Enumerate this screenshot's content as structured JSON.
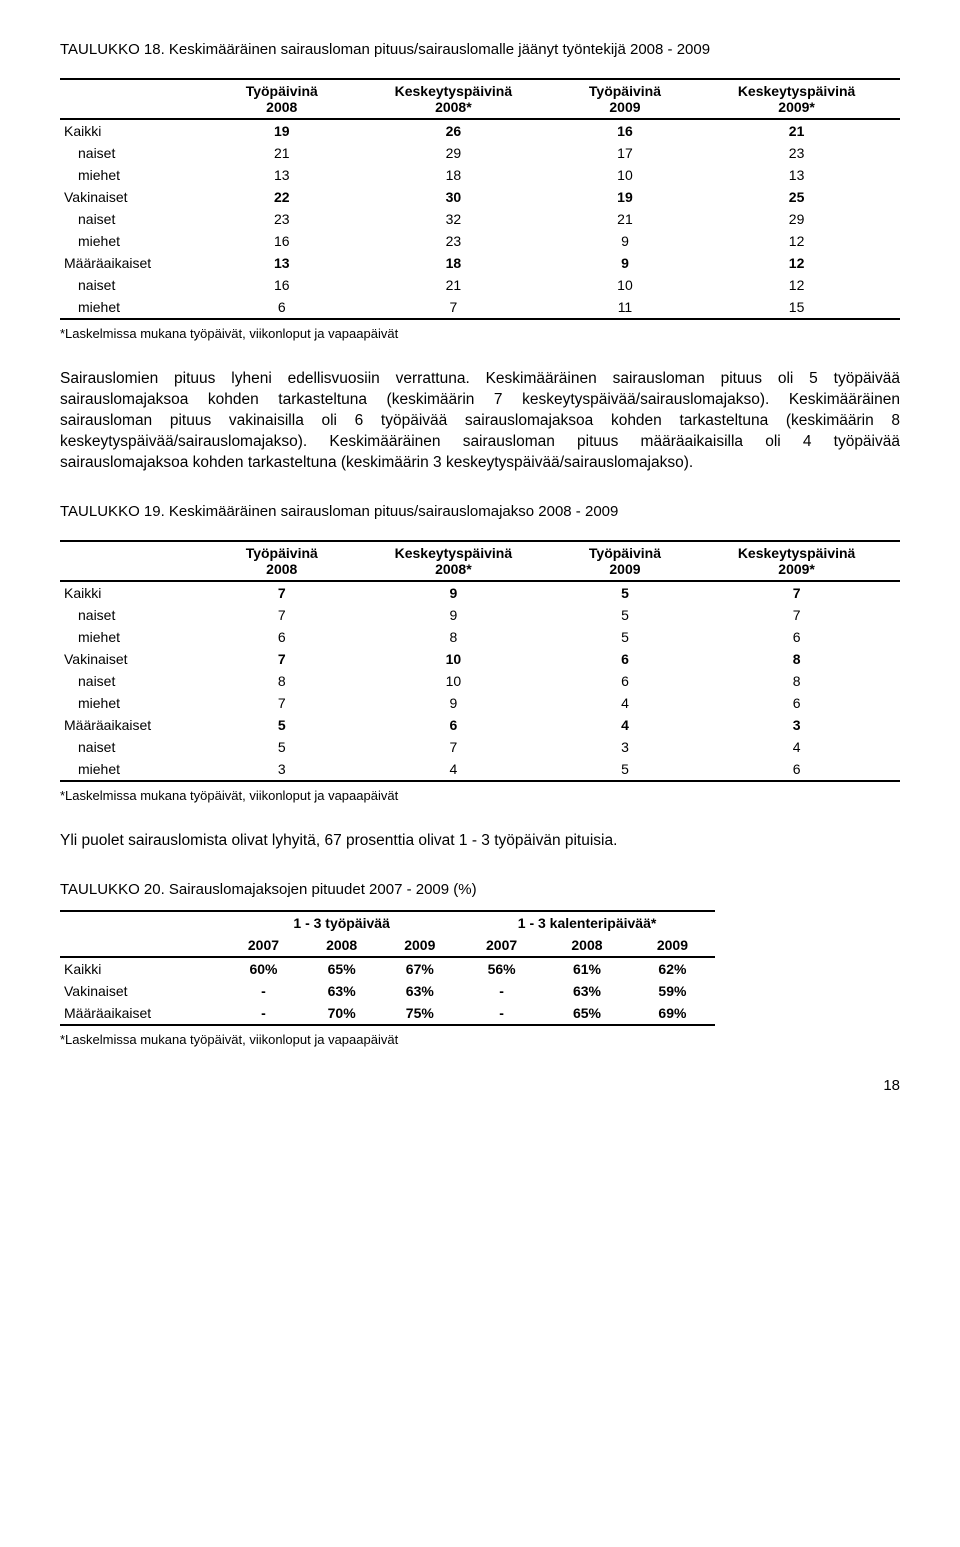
{
  "t18": {
    "caption": "TAULUKKO 18. Keskimääräinen sairausloman pituus/sairauslomalle jäänyt työntekijä 2008 - 2009",
    "cols": [
      "",
      "Työpäivinä\n2008",
      "Keskeytyspäivinä\n2008*",
      "Työpäivinä\n2009",
      "Keskeytyspäivinä\n2009*"
    ],
    "groups": [
      {
        "label": "Kaikki",
        "vals": [
          19,
          26,
          16,
          21
        ],
        "rows": [
          {
            "label": "naiset",
            "vals": [
              21,
              29,
              17,
              23
            ]
          },
          {
            "label": "miehet",
            "vals": [
              13,
              18,
              10,
              13
            ]
          }
        ]
      },
      {
        "label": "Vakinaiset",
        "vals": [
          22,
          30,
          19,
          25
        ],
        "rows": [
          {
            "label": "naiset",
            "vals": [
              23,
              32,
              21,
              29
            ]
          },
          {
            "label": "miehet",
            "vals": [
              16,
              23,
              9,
              12
            ]
          }
        ]
      },
      {
        "label": "Määräaikaiset",
        "vals": [
          13,
          18,
          9,
          12
        ],
        "rows": [
          {
            "label": "naiset",
            "vals": [
              16,
              21,
              10,
              12
            ]
          },
          {
            "label": "miehet",
            "vals": [
              6,
              7,
              11,
              15
            ]
          }
        ]
      }
    ],
    "footnote": "*Laskelmissa mukana työpäivät, viikonloput ja vapaapäivät"
  },
  "para1": "Sairauslomien pituus lyheni edellisvuosiin verrattuna. Keskimääräinen sairausloman pituus oli 5 työpäivää sairauslomajaksoa kohden tarkasteltuna (keskimäärin 7 keskeytyspäivää/sairauslomajakso). Keskimääräinen sairausloman pituus vakinaisilla oli 6 työpäivää sairauslomajaksoa kohden tarkasteltuna (keskimäärin 8 keskeytyspäivää/sairauslomajakso). Keskimääräinen sairausloman pituus määräaikaisilla oli 4 työpäivää sairauslomajaksoa kohden tarkasteltuna (keskimäärin 3 keskeytyspäivää/sairauslomajakso).",
  "t19": {
    "caption": "TAULUKKO 19. Keskimääräinen sairausloman pituus/sairauslomajakso 2008 - 2009",
    "cols": [
      "",
      "Työpäivinä\n2008",
      "Keskeytyspäivinä\n2008*",
      "Työpäivinä\n2009",
      "Keskeytyspäivinä\n2009*"
    ],
    "groups": [
      {
        "label": "Kaikki",
        "vals": [
          7,
          9,
          5,
          7
        ],
        "rows": [
          {
            "label": "naiset",
            "vals": [
              7,
              9,
              5,
              7
            ]
          },
          {
            "label": "miehet",
            "vals": [
              6,
              8,
              5,
              6
            ]
          }
        ]
      },
      {
        "label": "Vakinaiset",
        "vals": [
          7,
          10,
          6,
          8
        ],
        "rows": [
          {
            "label": "naiset",
            "vals": [
              8,
              10,
              6,
              8
            ]
          },
          {
            "label": "miehet",
            "vals": [
              7,
              9,
              4,
              6
            ]
          }
        ]
      },
      {
        "label": "Määräaikaiset",
        "vals": [
          5,
          6,
          4,
          3
        ],
        "rows": [
          {
            "label": "naiset",
            "vals": [
              5,
              7,
              3,
              4
            ]
          },
          {
            "label": "miehet",
            "vals": [
              3,
              4,
              5,
              6
            ]
          }
        ]
      }
    ],
    "footnote": "*Laskelmissa mukana työpäivät, viikonloput ja vapaapäivät"
  },
  "para2": "Yli puolet sairauslomista olivat lyhyitä, 67 prosenttia olivat 1 - 3 työpäivän pituisia.",
  "t20": {
    "caption": "TAULUKKO 20. Sairauslomajaksojen pituudet 2007 - 2009 (%)",
    "super_cols": [
      "",
      "1 - 3 työpäivää",
      "1 - 3 kalenteripäivää*"
    ],
    "year_cols": [
      "",
      "2007",
      "2008",
      "2009",
      "2007",
      "2008",
      "2009"
    ],
    "rows": [
      {
        "label": "Kaikki",
        "vals": [
          "60%",
          "65%",
          "67%",
          "56%",
          "61%",
          "62%"
        ],
        "bold": true
      },
      {
        "label": "Vakinaiset",
        "vals": [
          "-",
          "63%",
          "63%",
          "-",
          "63%",
          "59%"
        ],
        "bold": true
      },
      {
        "label": "Määräaikaiset",
        "vals": [
          "-",
          "70%",
          "75%",
          "-",
          "65%",
          "69%"
        ],
        "bold": true
      }
    ],
    "footnote": "*Laskelmissa mukana työpäivät, viikonloput ja vapaapäivät"
  },
  "page_number": "18"
}
